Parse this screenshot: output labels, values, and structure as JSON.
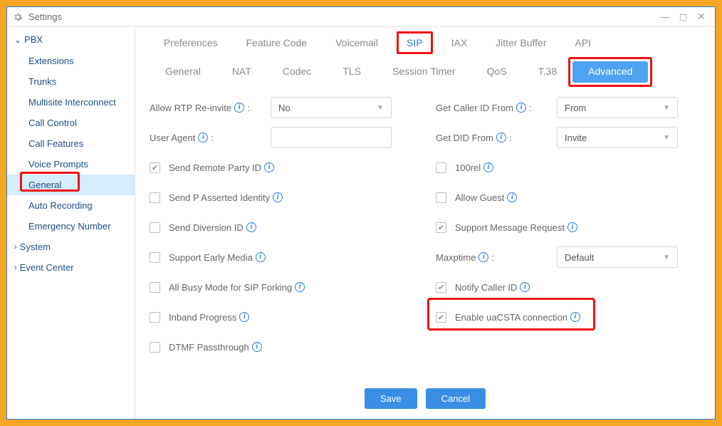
{
  "window": {
    "title": "Settings"
  },
  "sidebar": {
    "group": "PBX",
    "items": [
      {
        "label": "Extensions"
      },
      {
        "label": "Trunks"
      },
      {
        "label": "Multisite Interconnect"
      },
      {
        "label": "Call Control"
      },
      {
        "label": "Call Features"
      },
      {
        "label": "Voice Prompts"
      },
      {
        "label": "General",
        "selected": true,
        "highlight": true
      },
      {
        "label": "Auto Recording"
      },
      {
        "label": "Emergency Number"
      }
    ],
    "groups2": [
      {
        "label": "System"
      },
      {
        "label": "Event Center"
      }
    ]
  },
  "tabs1": [
    {
      "label": "Preferences"
    },
    {
      "label": "Feature Code"
    },
    {
      "label": "Voicemail"
    },
    {
      "label": "SIP",
      "active": true,
      "highlight": true
    },
    {
      "label": "IAX"
    },
    {
      "label": "Jitter Buffer"
    },
    {
      "label": "API"
    }
  ],
  "tabs2": [
    {
      "label": "General"
    },
    {
      "label": "NAT"
    },
    {
      "label": "Codec"
    },
    {
      "label": "TLS"
    },
    {
      "label": "Session Timer"
    },
    {
      "label": "QoS"
    },
    {
      "label": "T.38"
    },
    {
      "label": "Advanced",
      "active": true,
      "highlight": true
    }
  ],
  "left": {
    "allow_rtp_label": "Allow RTP Re-invite",
    "allow_rtp_value": "No",
    "user_agent_label": "User Agent",
    "user_agent_value": "",
    "checks": [
      {
        "label": "Send Remote Party ID",
        "checked": true
      },
      {
        "label": "Send P Asserted Identity",
        "checked": false
      },
      {
        "label": "Send Diversion ID",
        "checked": false
      },
      {
        "label": "Support Early Media",
        "checked": false
      },
      {
        "label": "All Busy Mode for SIP Forking",
        "checked": false
      },
      {
        "label": "Inband Progress",
        "checked": false
      },
      {
        "label": "DTMF Passthrough",
        "checked": false
      }
    ]
  },
  "right": {
    "get_caller_label": "Get Caller ID From",
    "get_caller_value": "From",
    "get_did_label": "Get DID From",
    "get_did_value": "Invite",
    "checks1": [
      {
        "label": "100rel",
        "checked": false
      },
      {
        "label": "Allow Guest",
        "checked": false
      },
      {
        "label": "Support Message Request",
        "checked": true
      }
    ],
    "maxptime_label": "Maxptime",
    "maxptime_value": "Default",
    "checks2": [
      {
        "label": "Notify Caller ID",
        "checked": true
      },
      {
        "label": "Enable uaCSTA connection",
        "checked": true,
        "highlight": true
      }
    ]
  },
  "footer": {
    "save": "Save",
    "cancel": "Cancel"
  },
  "colors": {
    "accent": "#2b7de1",
    "highlight_border": "#e11b1b",
    "outer": "#f5a623",
    "selected_bg": "#d6ecff",
    "tab_active_bg": "#4ea3f2"
  }
}
